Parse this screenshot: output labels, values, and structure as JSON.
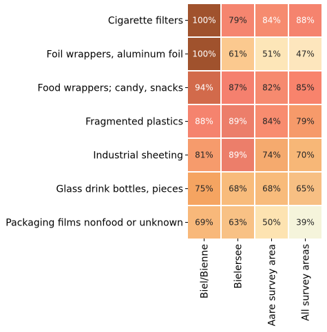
{
  "chart_data": {
    "type": "heatmap",
    "rows": [
      "Cigarette filters",
      "Foil wrappers, aluminum foil",
      "Food wrappers; candy, snacks",
      "Fragmented plastics",
      "Industrial sheeting",
      "Glass drink bottles, pieces",
      "Packaging films nonfood or unknown"
    ],
    "columns": [
      "Biel/Bienne",
      "Bielersee",
      "Aare survey area",
      "All survey areas"
    ],
    "values": [
      [
        100,
        79,
        84,
        88
      ],
      [
        100,
        61,
        51,
        47
      ],
      [
        94,
        87,
        82,
        85
      ],
      [
        88,
        89,
        84,
        79
      ],
      [
        81,
        89,
        74,
        70
      ],
      [
        75,
        68,
        68,
        65
      ],
      [
        69,
        63,
        50,
        39
      ]
    ],
    "value_suffix": "%",
    "colormap": "sequential: light cream (low) to coral/salmon to brown (high)",
    "colorbar": false,
    "cell_colors": [
      [
        "#a0522d",
        "#f5856f",
        "#f68b6f",
        "#f5836e"
      ],
      [
        "#a0522d",
        "#fbc98f",
        "#fde6b8",
        "#fde6bd"
      ],
      [
        "#d26a4b",
        "#f5806e",
        "#f68a6f",
        "#f8836c"
      ],
      [
        "#f5836e",
        "#ec7e6a",
        "#f88c6f",
        "#f69a6a"
      ],
      [
        "#f69b6c",
        "#ec7e6a",
        "#f5aa6e",
        "#f7b777"
      ],
      [
        "#f5a461",
        "#f8bb7b",
        "#f8bb7b",
        "#f7bf83"
      ],
      [
        "#f8b87a",
        "#f8c185",
        "#fde3b1",
        "#f5f4db"
      ]
    ],
    "light_text_cells": [
      [
        0,
        0
      ],
      [
        1,
        0
      ],
      [
        2,
        0
      ],
      [
        3,
        0
      ],
      [
        0,
        2
      ],
      [
        0,
        3
      ],
      [
        3,
        1
      ],
      [
        4,
        1
      ]
    ],
    "text_color_dark": "#262626",
    "text_color_light": "#ffffff"
  }
}
